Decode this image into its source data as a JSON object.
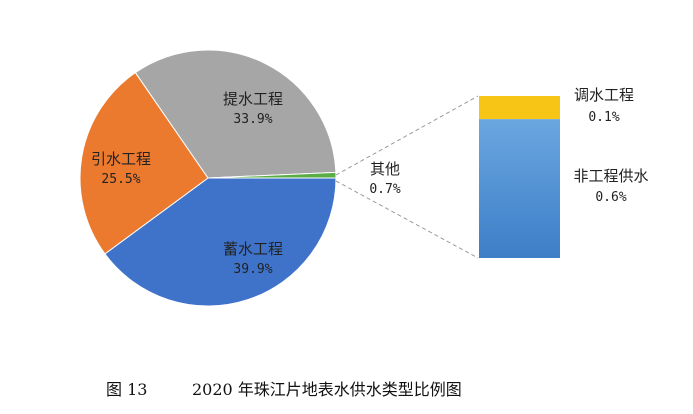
{
  "chart_data": {
    "type": "pie",
    "title": "",
    "slices": [
      {
        "name": "蓄水工程",
        "value": 39.9,
        "label": "39.9%",
        "color": "#3f73c9"
      },
      {
        "name": "引水工程",
        "value": 25.5,
        "label": "25.5%",
        "color": "#ec7a2e"
      },
      {
        "name": "提水工程",
        "value": 33.9,
        "label": "33.9%",
        "color": "#a6a6a6"
      },
      {
        "name": "其他",
        "value": 0.7,
        "label": "0.7%",
        "color": "#5aad45"
      }
    ],
    "breakdown": {
      "of": "其他",
      "type": "stacked-bar",
      "segments": [
        {
          "name": "调水工程",
          "value": 0.1,
          "label": "0.1%",
          "color": "#f7c515"
        },
        {
          "name": "非工程供水",
          "value": 0.6,
          "label": "0.6%",
          "color": "#4a8fd6"
        }
      ]
    }
  },
  "caption": {
    "figure_number": "图 13",
    "text": "2020 年珠江片地表水供水类型比例图"
  }
}
